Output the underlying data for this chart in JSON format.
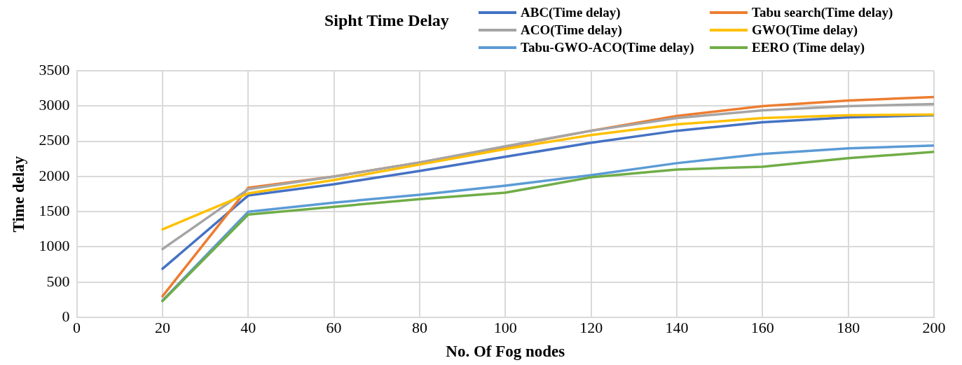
{
  "chart_data": {
    "type": "line",
    "title": "Sipht Time Delay",
    "xlabel": "No. Of Fog nodes",
    "ylabel": "Time delay",
    "x": [
      20,
      40,
      60,
      80,
      100,
      120,
      140,
      160,
      180,
      200
    ],
    "series": [
      {
        "name": "ABC(Time delay)",
        "color": "#4472c4",
        "values": [
          690,
          1730,
          1890,
          2080,
          2280,
          2480,
          2650,
          2770,
          2840,
          2870
        ]
      },
      {
        "name": "Tabu search(Time delay)",
        "color": "#ed7d31",
        "values": [
          300,
          1840,
          2000,
          2200,
          2420,
          2650,
          2860,
          3000,
          3080,
          3130
        ]
      },
      {
        "name": "ACO(Time delay)",
        "color": "#a5a5a5",
        "values": [
          970,
          1820,
          2000,
          2200,
          2430,
          2650,
          2830,
          2940,
          3000,
          3030
        ]
      },
      {
        "name": "GWO(Time delay)",
        "color": "#ffc000",
        "values": [
          1250,
          1760,
          1950,
          2170,
          2390,
          2590,
          2740,
          2830,
          2870,
          2880
        ]
      },
      {
        "name": "Tabu-GWO-ACO(Time delay)",
        "color": "#5b9bd5",
        "values": [
          240,
          1500,
          1630,
          1740,
          1870,
          2020,
          2190,
          2320,
          2400,
          2440
        ]
      },
      {
        "name": "EERO (Time delay)",
        "color": "#70ad47",
        "values": [
          230,
          1460,
          1570,
          1680,
          1770,
          1990,
          2100,
          2140,
          2260,
          2350
        ]
      }
    ],
    "xlim": [
      0,
      200
    ],
    "xticks": [
      0,
      20,
      40,
      60,
      80,
      100,
      120,
      140,
      160,
      180,
      200
    ],
    "ylim": [
      0,
      3500
    ],
    "yticks": [
      0,
      500,
      1000,
      1500,
      2000,
      2500,
      3000,
      3500
    ],
    "grid": true,
    "legend": "top",
    "marker": "none",
    "line_style": "solid"
  }
}
